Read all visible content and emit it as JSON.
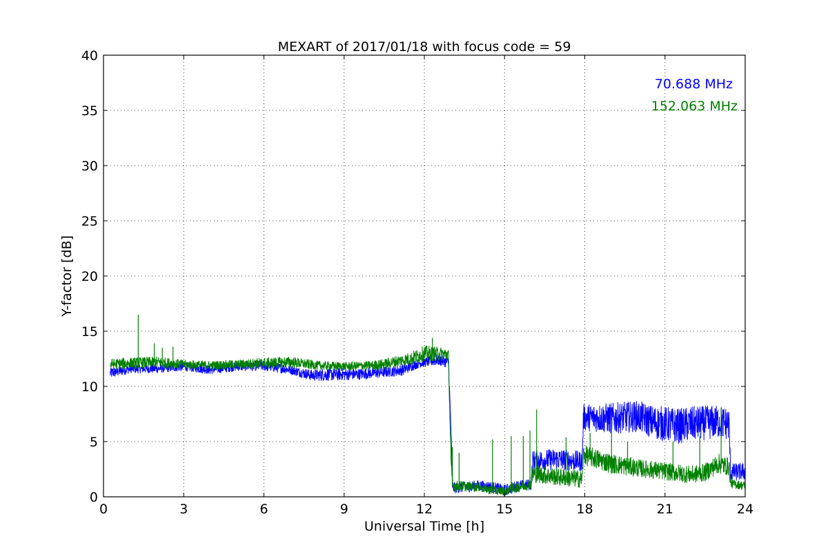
{
  "chart_data": {
    "type": "line",
    "title": "MEXART of 2017/01/18 with focus code = 59",
    "xlabel": "Universal Time [h]",
    "ylabel": "Y-factor [dB]",
    "xlim": [
      0,
      24
    ],
    "ylim": [
      0,
      40
    ],
    "xticks": [
      0,
      3,
      6,
      9,
      12,
      15,
      18,
      21,
      24
    ],
    "yticks": [
      0,
      5,
      10,
      15,
      20,
      25,
      30,
      35,
      40
    ],
    "grid": true,
    "legend_position": "top-right",
    "series": [
      {
        "name": "70.688 MHz",
        "color": "#0000ff",
        "x": [
          0.25,
          1,
          2,
          3,
          4,
          5,
          6,
          7,
          7.8,
          8.5,
          9.5,
          10.5,
          11.2,
          11.8,
          12.5,
          12.9,
          13.0,
          13.05,
          14,
          14.5,
          15,
          15.5,
          16.0,
          16.05,
          17,
          17.9,
          17.95,
          19,
          20,
          20.5,
          21,
          21.5,
          22,
          23,
          23.4,
          23.45,
          24
        ],
        "y": [
          11.2,
          11.6,
          11.6,
          11.8,
          11.5,
          11.8,
          11.9,
          11.5,
          11.0,
          11.1,
          11.1,
          11.3,
          11.5,
          12.1,
          12.4,
          12.2,
          6.0,
          0.8,
          1.0,
          0.9,
          0.6,
          1.0,
          1.1,
          3.3,
          3.4,
          3.2,
          7.2,
          7.1,
          7.3,
          6.8,
          6.6,
          6.4,
          6.6,
          6.8,
          6.6,
          2.2,
          2.3
        ],
        "spread": [
          0.5,
          0.4,
          0.4,
          0.4,
          0.4,
          0.4,
          0.5,
          0.4,
          0.5,
          0.6,
          0.5,
          0.5,
          0.5,
          0.4,
          0.5,
          0.5,
          0.5,
          0.5,
          0.5,
          0.5,
          0.5,
          0.5,
          0.5,
          0.9,
          1.0,
          0.9,
          1.2,
          1.4,
          1.4,
          1.5,
          1.6,
          1.6,
          1.6,
          1.5,
          1.5,
          0.8,
          0.8
        ]
      },
      {
        "name": "152.063 MHz",
        "color": "#008000",
        "x": [
          0.25,
          1,
          2,
          3,
          4,
          5,
          6,
          7,
          8,
          9,
          10,
          10.5,
          11,
          11.5,
          12,
          12.9,
          13.0,
          13.05,
          14,
          14.5,
          15,
          15.5,
          16.0,
          16.05,
          17,
          17.9,
          17.95,
          19,
          20,
          21,
          22,
          22.5,
          23,
          23.4,
          23.45,
          24
        ],
        "y": [
          12.0,
          12.1,
          12.2,
          12.0,
          11.9,
          12.0,
          12.1,
          12.2,
          11.9,
          11.8,
          11.9,
          12.0,
          12.3,
          12.5,
          13.0,
          12.9,
          3.0,
          1.0,
          0.9,
          0.6,
          0.5,
          0.9,
          1.2,
          2.1,
          1.8,
          1.6,
          3.8,
          3.0,
          2.6,
          2.3,
          2.0,
          2.2,
          3.0,
          2.7,
          1.2,
          1.0
        ],
        "spread": [
          0.5,
          0.5,
          0.5,
          0.4,
          0.4,
          0.4,
          0.5,
          0.5,
          0.4,
          0.4,
          0.4,
          0.5,
          0.5,
          0.6,
          0.7,
          0.6,
          0.5,
          0.5,
          0.4,
          0.4,
          0.4,
          0.5,
          0.5,
          0.8,
          0.8,
          0.8,
          0.9,
          0.9,
          0.8,
          0.8,
          0.8,
          0.8,
          0.9,
          0.8,
          0.4,
          0.4
        ],
        "spikes": [
          [
            1.3,
            16.5
          ],
          [
            1.9,
            13.9
          ],
          [
            2.2,
            13.5
          ],
          [
            2.6,
            13.6
          ],
          [
            12.3,
            14.4
          ],
          [
            13.05,
            4.5
          ],
          [
            13.3,
            4.0
          ],
          [
            14.55,
            5.2
          ],
          [
            15.25,
            5.5
          ],
          [
            15.7,
            5.5
          ],
          [
            15.95,
            6.0
          ],
          [
            16.2,
            7.9
          ],
          [
            17.3,
            5.4
          ],
          [
            18.2,
            5.8
          ],
          [
            19.0,
            6.2
          ],
          [
            19.6,
            5.0
          ],
          [
            21.3,
            5.0
          ],
          [
            22.3,
            5.5
          ],
          [
            23.1,
            8.1
          ]
        ]
      }
    ]
  }
}
